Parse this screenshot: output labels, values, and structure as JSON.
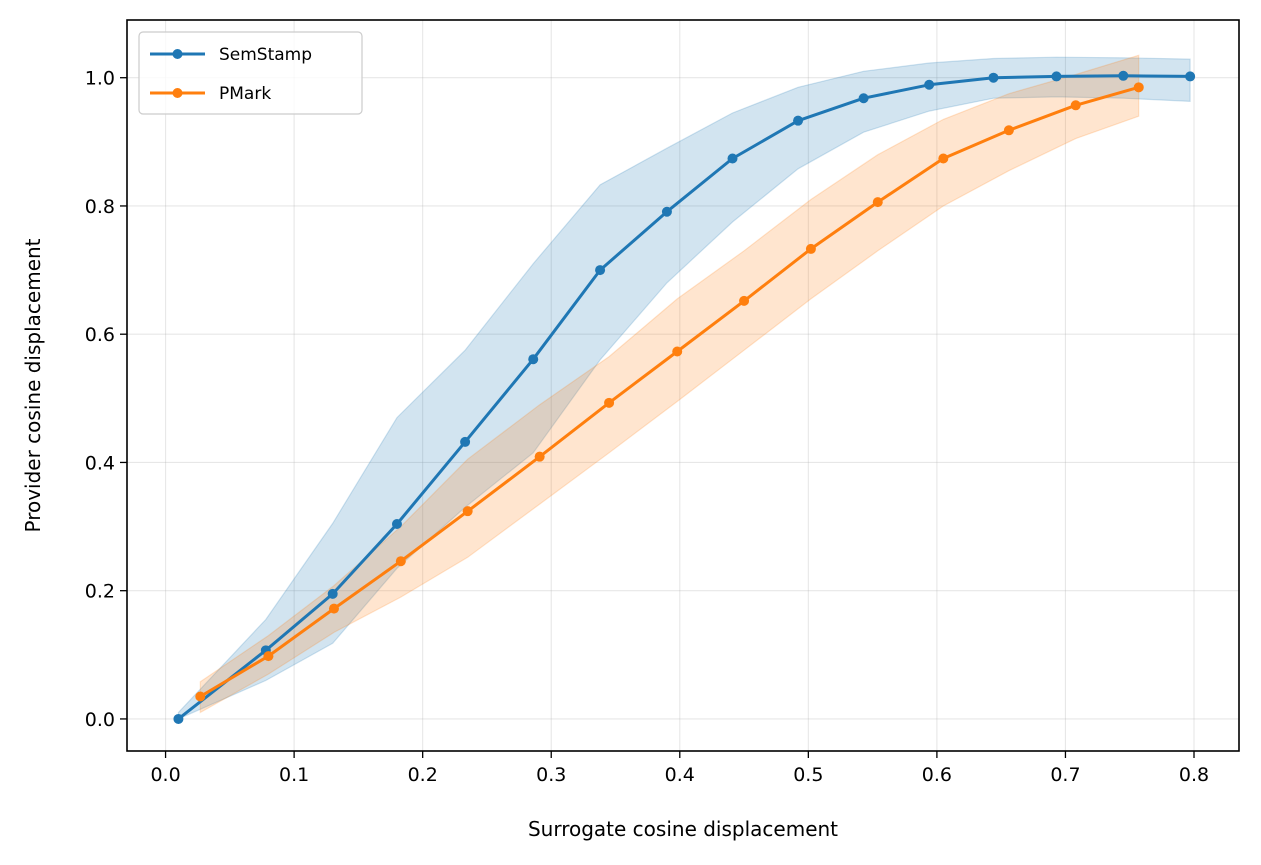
{
  "chart_data": {
    "type": "line",
    "xlabel": "Surrogate cosine displacement",
    "ylabel": "Provider cosine displacement",
    "xlim": [
      -0.03,
      0.835
    ],
    "ylim": [
      -0.05,
      1.09
    ],
    "xticks": [
      0.0,
      0.1,
      0.2,
      0.3,
      0.4,
      0.5,
      0.6,
      0.7,
      0.8
    ],
    "yticks": [
      0.0,
      0.2,
      0.4,
      0.6,
      0.8,
      1.0
    ],
    "grid": true,
    "legend_position": "top-left",
    "series": [
      {
        "name": "SemStamp",
        "color": "#1f77b4",
        "x": [
          0.01,
          0.078,
          0.13,
          0.18,
          0.233,
          0.286,
          0.338,
          0.39,
          0.441,
          0.492,
          0.543,
          0.594,
          0.644,
          0.693,
          0.745,
          0.797
        ],
        "y": [
          0.0,
          0.107,
          0.195,
          0.304,
          0.432,
          0.561,
          0.7,
          0.791,
          0.874,
          0.933,
          0.968,
          0.989,
          1.0,
          1.002,
          1.003,
          1.002
        ],
        "lower": [
          0.0,
          0.06,
          0.118,
          0.235,
          0.33,
          0.415,
          0.56,
          0.68,
          0.775,
          0.858,
          0.915,
          0.948,
          0.968,
          0.97,
          0.968,
          0.963
        ],
        "upper": [
          0.01,
          0.155,
          0.305,
          0.47,
          0.575,
          0.71,
          0.833,
          0.89,
          0.945,
          0.985,
          1.01,
          1.023,
          1.03,
          1.032,
          1.031,
          1.029
        ]
      },
      {
        "name": "PMark",
        "color": "#ff7f0e",
        "x": [
          0.027,
          0.08,
          0.131,
          0.183,
          0.235,
          0.291,
          0.345,
          0.398,
          0.45,
          0.502,
          0.554,
          0.605,
          0.656,
          0.708,
          0.757
        ],
        "y": [
          0.035,
          0.098,
          0.172,
          0.246,
          0.324,
          0.409,
          0.493,
          0.573,
          0.652,
          0.733,
          0.806,
          0.874,
          0.918,
          0.957,
          0.985
        ],
        "lower": [
          0.01,
          0.07,
          0.135,
          0.19,
          0.252,
          0.335,
          0.415,
          0.495,
          0.575,
          0.655,
          0.73,
          0.8,
          0.855,
          0.905,
          0.94
        ],
        "upper": [
          0.058,
          0.13,
          0.208,
          0.3,
          0.405,
          0.49,
          0.565,
          0.655,
          0.73,
          0.81,
          0.88,
          0.935,
          0.975,
          1.005,
          1.035
        ]
      }
    ]
  }
}
